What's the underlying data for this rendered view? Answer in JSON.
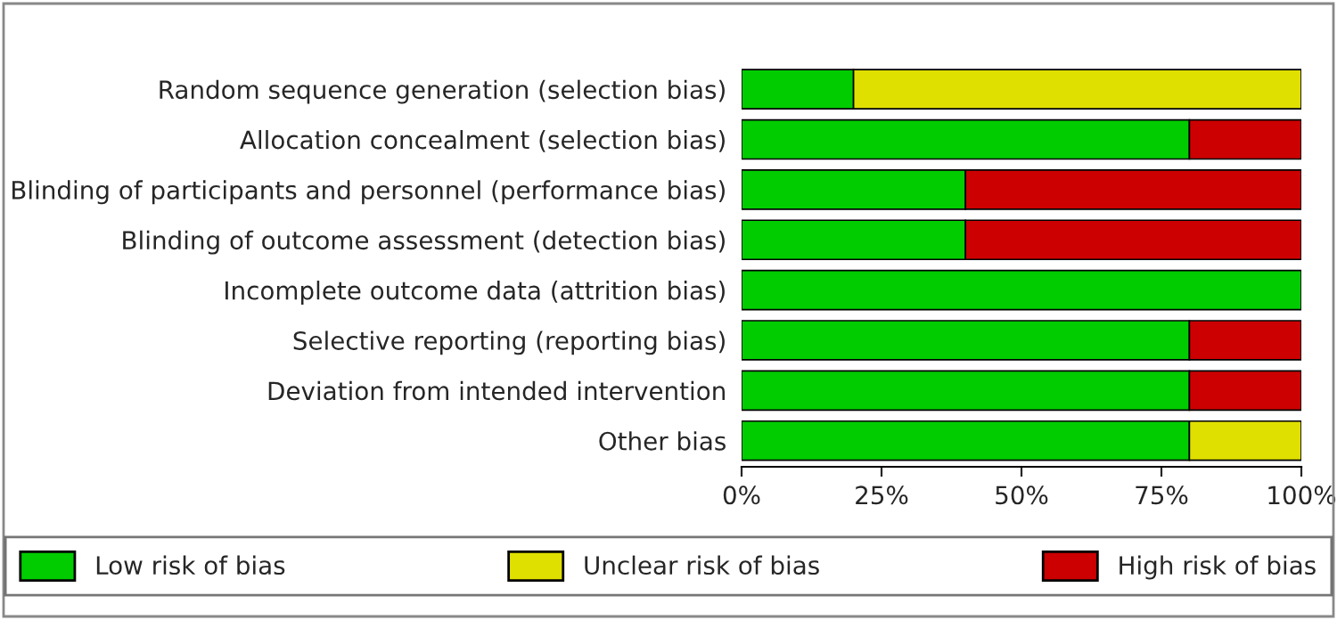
{
  "chart_data": {
    "type": "bar",
    "orientation": "horizontal",
    "stacked": true,
    "categories": [
      "Random sequence generation (selection bias)",
      "Allocation concealment (selection bias)",
      "Blinding of participants and personnel (performance bias)",
      "Blinding of outcome assessment (detection bias)",
      "Incomplete outcome data (attrition bias)",
      "Selective reporting (reporting bias)",
      "Deviation from intended intervention",
      "Other bias"
    ],
    "series": [
      {
        "name": "Low risk of bias",
        "color": "#00cc00",
        "values": [
          20,
          80,
          40,
          40,
          100,
          80,
          80,
          80
        ]
      },
      {
        "name": "Unclear risk of bias",
        "color": "#e0e000",
        "values": [
          80,
          0,
          0,
          0,
          0,
          0,
          0,
          20
        ]
      },
      {
        "name": "High risk of bias",
        "color": "#cc0000",
        "values": [
          0,
          20,
          60,
          60,
          0,
          20,
          20,
          0
        ]
      }
    ],
    "xlim": [
      0,
      100
    ],
    "xticks": [
      {
        "value": 0,
        "label": "0%"
      },
      {
        "value": 25,
        "label": "25%"
      },
      {
        "value": 50,
        "label": "50%"
      },
      {
        "value": 75,
        "label": "75%"
      },
      {
        "value": 100,
        "label": "100%"
      }
    ],
    "grid": false,
    "legend": "bottom"
  }
}
